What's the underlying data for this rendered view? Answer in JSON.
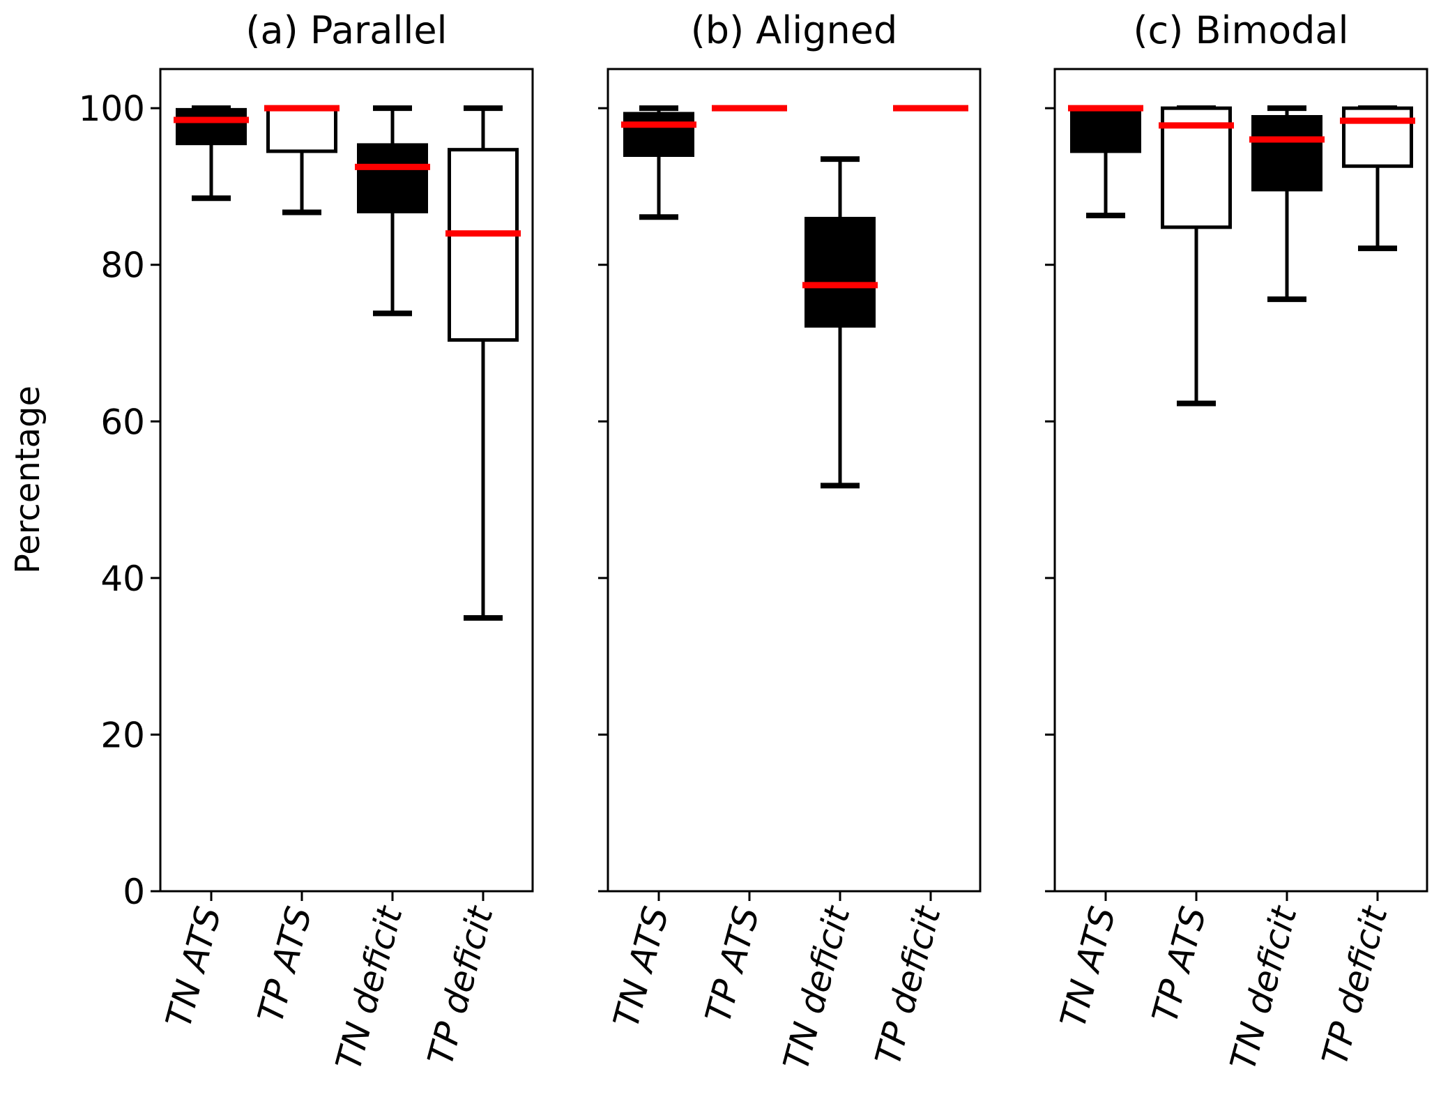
{
  "chart_data": {
    "type": "box",
    "ylabel": "Percentage",
    "ylim": [
      0,
      105
    ],
    "yticks": [
      0,
      20,
      40,
      60,
      80,
      100
    ],
    "ytick_labels": [
      "0",
      "20",
      "40",
      "60",
      "80",
      "100"
    ],
    "xtick_rotation_deg": 75,
    "grid": false,
    "legend": null,
    "colors": {
      "median": "#ff0000",
      "tn_box_fill": "#000000",
      "tp_box_fill": "#ffffff",
      "box_edge": "#000000",
      "whisker": "#000000"
    },
    "panels": [
      {
        "title": "(a) Parallel",
        "categories": [
          "TN ATS",
          "TP ATS",
          "TN deficit",
          "TP deficit"
        ],
        "boxes": [
          {
            "label": "TN ATS",
            "fill": "tn",
            "whislo": 88.5,
            "q1": 95.5,
            "med": 98.5,
            "q3": 99.8,
            "whishi": 100
          },
          {
            "label": "TP ATS",
            "fill": "tp",
            "whislo": 86.7,
            "q1": 94.5,
            "med": 100,
            "q3": 100,
            "whishi": 100
          },
          {
            "label": "TN deficit",
            "fill": "tn",
            "whislo": 73.8,
            "q1": 86.8,
            "med": 92.5,
            "q3": 95.3,
            "whishi": 100
          },
          {
            "label": "TP deficit",
            "fill": "tp",
            "whislo": 34.9,
            "q1": 70.4,
            "med": 84.0,
            "q3": 94.7,
            "whishi": 100
          }
        ]
      },
      {
        "title": "(b) Aligned",
        "categories": [
          "TN ATS",
          "TP ATS",
          "TN deficit",
          "TP deficit"
        ],
        "boxes": [
          {
            "label": "TN ATS",
            "fill": "tn",
            "whislo": 86.1,
            "q1": 94.0,
            "med": 97.9,
            "q3": 99.3,
            "whishi": 100
          },
          {
            "label": "TP ATS",
            "fill": "tp",
            "whislo": 100,
            "q1": 100,
            "med": 100,
            "q3": 100,
            "whishi": 100
          },
          {
            "label": "TN deficit",
            "fill": "tn",
            "whislo": 51.8,
            "q1": 72.2,
            "med": 77.4,
            "q3": 85.9,
            "whishi": 93.5
          },
          {
            "label": "TP deficit",
            "fill": "tp",
            "whislo": 100,
            "q1": 100,
            "med": 100,
            "q3": 100,
            "whishi": 100
          }
        ]
      },
      {
        "title": "(c) Bimodal",
        "categories": [
          "TN ATS",
          "TP ATS",
          "TN deficit",
          "TP deficit"
        ],
        "boxes": [
          {
            "label": "TN ATS",
            "fill": "tn",
            "whislo": 86.3,
            "q1": 94.5,
            "med": 100,
            "q3": 100,
            "whishi": 100
          },
          {
            "label": "TP ATS",
            "fill": "tp",
            "whislo": 62.3,
            "q1": 84.8,
            "med": 97.8,
            "q3": 100,
            "whishi": 100
          },
          {
            "label": "TN deficit",
            "fill": "tn",
            "whislo": 75.6,
            "q1": 89.6,
            "med": 96.0,
            "q3": 98.9,
            "whishi": 100
          },
          {
            "label": "TP deficit",
            "fill": "tp",
            "whislo": 82.1,
            "q1": 92.6,
            "med": 98.4,
            "q3": 100,
            "whishi": 100
          }
        ]
      }
    ]
  }
}
